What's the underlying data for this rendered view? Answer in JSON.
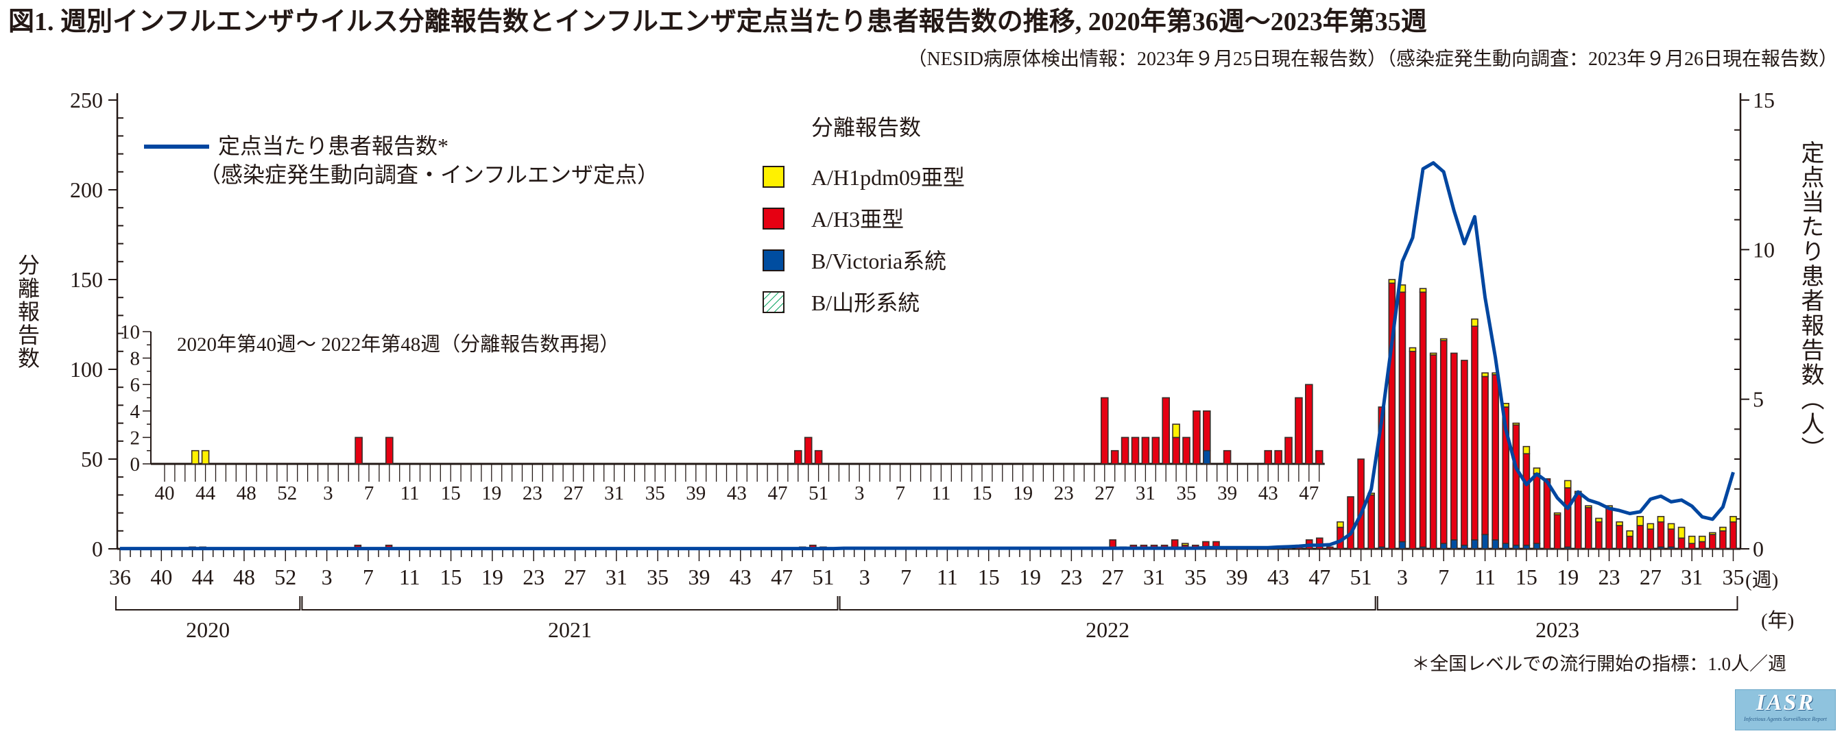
{
  "chart_data": {
    "type": "bar+line",
    "title": "図1. 週別インフルエンザウイルス分離報告数とインフルエンザ定点当たり患者報告数の推移, 2020年第36週～2023年第35週",
    "subtitle": "（NESID病原体検出情報：2023年９月25日現在報告数）（感染症発生動向調査：2023年９月26日現在報告数）",
    "y_left": {
      "label": "分離報告数",
      "range": [
        0,
        250
      ],
      "ticks": [
        0,
        50,
        100,
        150,
        200,
        250
      ]
    },
    "y_right": {
      "label": "定点当たり患者報告数（人）",
      "range": [
        0,
        15
      ],
      "ticks": [
        0,
        5,
        10,
        15
      ]
    },
    "x": {
      "unit_label": "(週)",
      "year_unit_label": "(年)",
      "years": [
        {
          "year": "2020",
          "first_week": 36,
          "last_week": 53
        },
        {
          "year": "2021",
          "first_week": 1,
          "last_week": 52
        },
        {
          "year": "2022",
          "first_week": 1,
          "last_week": 52
        },
        {
          "year": "2023",
          "first_week": 1,
          "last_week": 35
        }
      ],
      "tick_labels": [
        "36",
        "40",
        "44",
        "48",
        "52",
        "3",
        "7",
        "11",
        "15",
        "19",
        "23",
        "27",
        "31",
        "35",
        "39",
        "43",
        "47",
        "51",
        "3",
        "7",
        "11",
        "15",
        "19",
        "23",
        "27",
        "31",
        "35",
        "39",
        "43",
        "47",
        "51",
        "3",
        "7",
        "11",
        "15",
        "19",
        "23",
        "27",
        "31",
        "35"
      ]
    },
    "legend": {
      "line_label": "定点当たり患者報告数*",
      "line_sublabel": "（感染症発生動向調査・インフルエンザ定点）",
      "bars_title": "分離報告数",
      "bars": [
        {
          "key": "h1",
          "name": "A/H1pdm09亜型",
          "color": "#fff100"
        },
        {
          "key": "h3",
          "name": "A/H3亜型",
          "color": "#e60012"
        },
        {
          "key": "bvic",
          "name": "B/Victoria系統",
          "color": "#004da0"
        },
        {
          "key": "byam",
          "name": "B/山形系統",
          "color": "#00a05a"
        }
      ]
    },
    "line_series": {
      "name": "定点当たり患者報告数",
      "color": "#0046a0",
      "values": [
        0.01,
        0.01,
        0.01,
        0.01,
        0.01,
        0.01,
        0.01,
        0.01,
        0.01,
        0.01,
        0.01,
        0.01,
        0.01,
        0.01,
        0.01,
        0.01,
        0.01,
        0.01,
        0.01,
        0.01,
        0.01,
        0.01,
        0.01,
        0.01,
        0.01,
        0.01,
        0.01,
        0.01,
        0.01,
        0.01,
        0.01,
        0.01,
        0.01,
        0.01,
        0.01,
        0.01,
        0.01,
        0.01,
        0.01,
        0.01,
        0.01,
        0.01,
        0.01,
        0.01,
        0.01,
        0.01,
        0.01,
        0.01,
        0.01,
        0.01,
        0.01,
        0.01,
        0.01,
        0.01,
        0.01,
        0.01,
        0.01,
        0.01,
        0.01,
        0.01,
        0.01,
        0.01,
        0.01,
        0.01,
        0.01,
        0.01,
        0.01,
        0.01,
        0.01,
        0.01,
        0.02,
        0.02,
        0.02,
        0.02,
        0.02,
        0.02,
        0.02,
        0.02,
        0.02,
        0.02,
        0.02,
        0.02,
        0.02,
        0.02,
        0.02,
        0.02,
        0.02,
        0.02,
        0.02,
        0.02,
        0.02,
        0.02,
        0.02,
        0.02,
        0.02,
        0.02,
        0.02,
        0.02,
        0.02,
        0.02,
        0.02,
        0.02,
        0.02,
        0.02,
        0.02,
        0.04,
        0.04,
        0.04,
        0.04,
        0.04,
        0.04,
        0.04,
        0.06,
        0.07,
        0.09,
        0.12,
        0.12,
        0.14,
        0.26,
        0.5,
        1.16,
        2.0,
        4.3,
        6.9,
        9.6,
        10.4,
        12.7,
        12.9,
        12.6,
        11.3,
        10.2,
        11.1,
        8.4,
        6.4,
        4.0,
        2.7,
        2.15,
        2.5,
        2.25,
        1.7,
        1.35,
        1.9,
        1.63,
        1.52,
        1.35,
        1.28,
        1.18,
        1.24,
        1.66,
        1.76,
        1.57,
        1.63,
        1.43,
        1.07,
        0.99,
        1.4,
        2.56
      ]
    },
    "bar_series": [
      {
        "week": "2020-43",
        "h1": 1
      },
      {
        "week": "2020-44",
        "h1": 1
      },
      {
        "week": "2021-6",
        "h3": 2
      },
      {
        "week": "2021-9",
        "h3": 2
      },
      {
        "week": "2021-49",
        "h3": 1
      },
      {
        "week": "2021-50",
        "h3": 2
      },
      {
        "week": "2021-51",
        "h3": 1
      },
      {
        "week": "2022-27",
        "h3": 5
      },
      {
        "week": "2022-28",
        "h3": 1
      },
      {
        "week": "2022-29",
        "h3": 2
      },
      {
        "week": "2022-30",
        "h3": 2
      },
      {
        "week": "2022-31",
        "h3": 2
      },
      {
        "week": "2022-32",
        "h3": 2
      },
      {
        "week": "2022-33",
        "h3": 5
      },
      {
        "week": "2022-34",
        "h3": 2,
        "h1": 1
      },
      {
        "week": "2022-35",
        "h3": 2
      },
      {
        "week": "2022-36",
        "h3": 4
      },
      {
        "week": "2022-37",
        "bvic": 1,
        "h3": 3
      },
      {
        "week": "2022-39",
        "h3": 1
      },
      {
        "week": "2022-43",
        "h3": 1
      },
      {
        "week": "2022-44",
        "h3": 1
      },
      {
        "week": "2022-45",
        "h3": 2
      },
      {
        "week": "2022-46",
        "h3": 5
      },
      {
        "week": "2022-47",
        "h3": 6
      },
      {
        "week": "2022-48",
        "h3": 1
      },
      {
        "week": "2022-49",
        "h3": 12,
        "h1": 3
      },
      {
        "week": "2022-50",
        "h3": 29
      },
      {
        "week": "2022-51",
        "h3": 50
      },
      {
        "week": "2022-52",
        "h3": 30,
        "h1": 1
      },
      {
        "week": "2023-1",
        "bvic": 1,
        "h3": 78
      },
      {
        "week": "2023-2",
        "h3": 148,
        "h1": 2
      },
      {
        "week": "2023-3",
        "bvic": 4,
        "h3": 139,
        "h1": 4
      },
      {
        "week": "2023-4",
        "h3": 110,
        "h1": 2
      },
      {
        "week": "2023-5",
        "bvic": 1,
        "h3": 142,
        "h1": 2
      },
      {
        "week": "2023-6",
        "h3": 108,
        "h1": 1
      },
      {
        "week": "2023-7",
        "bvic": 3,
        "h3": 113,
        "h1": 1
      },
      {
        "week": "2023-8",
        "bvic": 5,
        "h3": 104
      },
      {
        "week": "2023-9",
        "bvic": 2,
        "h3": 103
      },
      {
        "week": "2023-10",
        "bvic": 5,
        "h3": 119,
        "h1": 4
      },
      {
        "week": "2023-11",
        "bvic": 8,
        "h3": 88,
        "h1": 2
      },
      {
        "week": "2023-12",
        "bvic": 5,
        "h3": 92,
        "h1": 1
      },
      {
        "week": "2023-13",
        "bvic": 3,
        "h3": 76,
        "h1": 2
      },
      {
        "week": "2023-14",
        "bvic": 2,
        "h3": 67,
        "h1": 1
      },
      {
        "week": "2023-15",
        "bvic": 2,
        "h3": 51,
        "h1": 4
      },
      {
        "week": "2023-16",
        "bvic": 3,
        "h3": 39,
        "h1": 3
      },
      {
        "week": "2023-17",
        "h3": 39
      },
      {
        "week": "2023-18",
        "h3": 19,
        "h1": 1
      },
      {
        "week": "2023-19",
        "bvic": 1,
        "h3": 33,
        "h1": 4
      },
      {
        "week": "2023-20",
        "h3": 31,
        "h1": 1
      },
      {
        "week": "2023-21",
        "h3": 23,
        "h1": 1
      },
      {
        "week": "2023-22",
        "h3": 15,
        "h1": 2
      },
      {
        "week": "2023-23",
        "h3": 23,
        "h1": 1
      },
      {
        "week": "2023-24",
        "h3": 13,
        "h1": 2
      },
      {
        "week": "2023-25",
        "h3": 7,
        "h1": 3
      },
      {
        "week": "2023-26",
        "h3": 13,
        "h1": 5
      },
      {
        "week": "2023-27",
        "h3": 11,
        "h1": 3
      },
      {
        "week": "2023-28",
        "bvic": 1,
        "h3": 14,
        "h1": 3
      },
      {
        "week": "2023-29",
        "bvic": 1,
        "h3": 10,
        "h1": 3
      },
      {
        "week": "2023-30",
        "h3": 6,
        "h1": 6
      },
      {
        "week": "2023-31",
        "h3": 3,
        "h1": 4
      },
      {
        "week": "2023-32",
        "h3": 4,
        "h1": 3
      },
      {
        "week": "2023-33",
        "h3": 8,
        "h1": 1
      },
      {
        "week": "2023-34",
        "h3": 10,
        "h1": 2
      },
      {
        "week": "2023-35",
        "h3": 15,
        "h1": 3
      }
    ],
    "inset": {
      "title": "2020年第40週～ 2022年第48週（分離報告数再掲）",
      "range": [
        "2020-40",
        "2022-48"
      ],
      "ylim": [
        0,
        10
      ],
      "yticks": [
        0,
        2,
        4,
        6,
        8,
        10
      ]
    },
    "footnote": "＊全国レベルでの流行開始の指標：1.0人／週"
  },
  "logo": {
    "text": "IASR",
    "subtext": "Infectious Agents Surveillance Report"
  }
}
